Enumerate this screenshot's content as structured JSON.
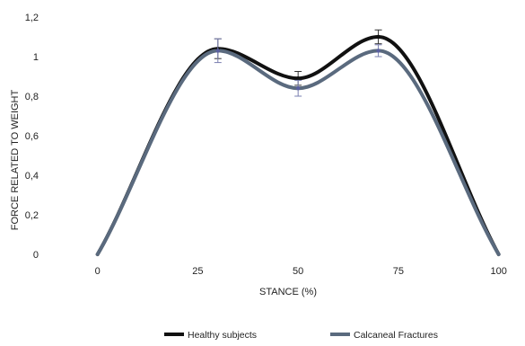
{
  "chart_data": {
    "type": "line",
    "title": "",
    "xlabel": "STANCE (%)",
    "ylabel": "FORCE RELATED TO WEIGHT",
    "xlim": [
      -10,
      105
    ],
    "ylim": [
      0,
      1.2
    ],
    "x_ticks": [
      0,
      25,
      50,
      75,
      100
    ],
    "y_ticks": [
      {
        "value": 0,
        "label": "0"
      },
      {
        "value": 0.2,
        "label": "0,2"
      },
      {
        "value": 0.4,
        "label": "0,4"
      },
      {
        "value": 0.6,
        "label": "0,6"
      },
      {
        "value": 0.8,
        "label": "0,8"
      },
      {
        "value": 1.0,
        "label": "1"
      },
      {
        "value": 1.2,
        "label": "1,2"
      }
    ],
    "grid": false,
    "legend_position": "bottom",
    "series": [
      {
        "name": "Healthy subjects",
        "color": "#111111",
        "x": [
          0,
          30,
          50,
          70,
          100
        ],
        "y": [
          0,
          1.04,
          0.89,
          1.1,
          0
        ],
        "error": [
          0,
          0.05,
          0.035,
          0.035,
          0
        ]
      },
      {
        "name": "Calcaneal Fractures",
        "color": "#5a6a7e",
        "x": [
          0,
          30,
          50,
          70,
          100
        ],
        "y": [
          0,
          1.03,
          0.84,
          1.03,
          0
        ],
        "error": [
          0,
          0.06,
          0.04,
          0.03,
          0
        ]
      }
    ]
  }
}
